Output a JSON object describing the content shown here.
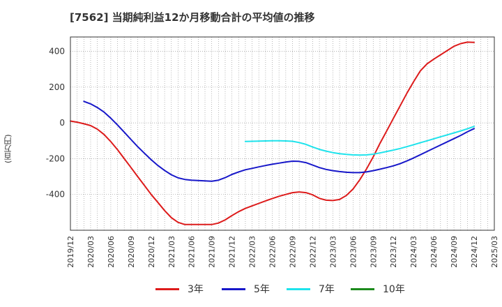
{
  "chart_data": {
    "type": "line",
    "title": "[7562]  当期純利益12か月移動合計の平均値の推移",
    "ylabel": "(百万円)",
    "ylim": [
      -600,
      480
    ],
    "xlim": [
      "2019-12",
      "2025-03"
    ],
    "yticks": [
      400,
      200,
      0,
      -200,
      -400
    ],
    "xticks": [
      "2019/12",
      "2020/03",
      "2020/06",
      "2020/09",
      "2020/12",
      "2021/03",
      "2021/06",
      "2021/09",
      "2021/12",
      "2022/03",
      "2022/06",
      "2022/09",
      "2022/12",
      "2023/03",
      "2023/06",
      "2023/09",
      "2023/12",
      "2024/03",
      "2024/06",
      "2024/09",
      "2024/12",
      "2025/03"
    ],
    "grid": true,
    "legend_position": "bottom",
    "series": [
      {
        "name": "3年",
        "color": "#dd1b1b",
        "points": [
          [
            "2019-12",
            10
          ],
          [
            "2020-01",
            4
          ],
          [
            "2020-02",
            -5
          ],
          [
            "2020-03",
            -15
          ],
          [
            "2020-04",
            -35
          ],
          [
            "2020-05",
            -65
          ],
          [
            "2020-06",
            -105
          ],
          [
            "2020-07",
            -150
          ],
          [
            "2020-08",
            -200
          ],
          [
            "2020-09",
            -250
          ],
          [
            "2020-10",
            -300
          ],
          [
            "2020-11",
            -350
          ],
          [
            "2020-12",
            -400
          ],
          [
            "2021-01",
            -445
          ],
          [
            "2021-02",
            -490
          ],
          [
            "2021-03",
            -530
          ],
          [
            "2021-04",
            -556
          ],
          [
            "2021-05",
            -568
          ],
          [
            "2021-06",
            -568
          ],
          [
            "2021-07",
            -568
          ],
          [
            "2021-08",
            -568
          ],
          [
            "2021-09",
            -568
          ],
          [
            "2021-10",
            -560
          ],
          [
            "2021-11",
            -542
          ],
          [
            "2021-12",
            -518
          ],
          [
            "2022-01",
            -496
          ],
          [
            "2022-02",
            -478
          ],
          [
            "2022-03",
            -464
          ],
          [
            "2022-04",
            -450
          ],
          [
            "2022-05",
            -436
          ],
          [
            "2022-06",
            -423
          ],
          [
            "2022-07",
            -410
          ],
          [
            "2022-08",
            -400
          ],
          [
            "2022-09",
            -390
          ],
          [
            "2022-10",
            -386
          ],
          [
            "2022-11",
            -390
          ],
          [
            "2022-12",
            -402
          ],
          [
            "2023-01",
            -422
          ],
          [
            "2023-02",
            -432
          ],
          [
            "2023-03",
            -434
          ],
          [
            "2023-04",
            -428
          ],
          [
            "2023-05",
            -406
          ],
          [
            "2023-06",
            -370
          ],
          [
            "2023-07",
            -318
          ],
          [
            "2023-08",
            -258
          ],
          [
            "2023-09",
            -190
          ],
          [
            "2023-10",
            -115
          ],
          [
            "2023-11",
            -45
          ],
          [
            "2023-12",
            25
          ],
          [
            "2024-01",
            95
          ],
          [
            "2024-02",
            165
          ],
          [
            "2024-03",
            230
          ],
          [
            "2024-04",
            290
          ],
          [
            "2024-05",
            330
          ],
          [
            "2024-06",
            356
          ],
          [
            "2024-07",
            380
          ],
          [
            "2024-08",
            404
          ],
          [
            "2024-09",
            428
          ],
          [
            "2024-10",
            443
          ],
          [
            "2024-11",
            451
          ],
          [
            "2024-12",
            450
          ]
        ]
      },
      {
        "name": "5年",
        "color": "#1717c9",
        "points": [
          [
            "2020-02",
            120
          ],
          [
            "2020-03",
            106
          ],
          [
            "2020-04",
            86
          ],
          [
            "2020-05",
            60
          ],
          [
            "2020-06",
            26
          ],
          [
            "2020-07",
            -12
          ],
          [
            "2020-08",
            -52
          ],
          [
            "2020-09",
            -93
          ],
          [
            "2020-10",
            -133
          ],
          [
            "2020-11",
            -170
          ],
          [
            "2020-12",
            -206
          ],
          [
            "2021-01",
            -238
          ],
          [
            "2021-02",
            -266
          ],
          [
            "2021-03",
            -290
          ],
          [
            "2021-04",
            -307
          ],
          [
            "2021-05",
            -316
          ],
          [
            "2021-06",
            -320
          ],
          [
            "2021-07",
            -322
          ],
          [
            "2021-08",
            -324
          ],
          [
            "2021-09",
            -326
          ],
          [
            "2021-10",
            -320
          ],
          [
            "2021-11",
            -306
          ],
          [
            "2021-12",
            -288
          ],
          [
            "2022-01",
            -274
          ],
          [
            "2022-02",
            -262
          ],
          [
            "2022-03",
            -254
          ],
          [
            "2022-04",
            -246
          ],
          [
            "2022-05",
            -238
          ],
          [
            "2022-06",
            -231
          ],
          [
            "2022-07",
            -225
          ],
          [
            "2022-08",
            -219
          ],
          [
            "2022-09",
            -214
          ],
          [
            "2022-10",
            -215
          ],
          [
            "2022-11",
            -222
          ],
          [
            "2022-12",
            -236
          ],
          [
            "2023-01",
            -250
          ],
          [
            "2023-02",
            -260
          ],
          [
            "2023-03",
            -267
          ],
          [
            "2023-04",
            -272
          ],
          [
            "2023-05",
            -276
          ],
          [
            "2023-06",
            -278
          ],
          [
            "2023-07",
            -278
          ],
          [
            "2023-08",
            -274
          ],
          [
            "2023-09",
            -267
          ],
          [
            "2023-10",
            -259
          ],
          [
            "2023-11",
            -250
          ],
          [
            "2023-12",
            -240
          ],
          [
            "2024-01",
            -228
          ],
          [
            "2024-02",
            -213
          ],
          [
            "2024-03",
            -196
          ],
          [
            "2024-04",
            -178
          ],
          [
            "2024-05",
            -160
          ],
          [
            "2024-06",
            -142
          ],
          [
            "2024-07",
            -124
          ],
          [
            "2024-08",
            -106
          ],
          [
            "2024-09",
            -88
          ],
          [
            "2024-10",
            -70
          ],
          [
            "2024-11",
            -50
          ],
          [
            "2024-12",
            -32
          ]
        ]
      },
      {
        "name": "7年",
        "color": "#1ee3ec",
        "points": [
          [
            "2022-02",
            -104
          ],
          [
            "2022-03",
            -103
          ],
          [
            "2022-04",
            -102
          ],
          [
            "2022-05",
            -101
          ],
          [
            "2022-06",
            -100
          ],
          [
            "2022-07",
            -100
          ],
          [
            "2022-08",
            -101
          ],
          [
            "2022-09",
            -103
          ],
          [
            "2022-10",
            -110
          ],
          [
            "2022-11",
            -120
          ],
          [
            "2022-12",
            -135
          ],
          [
            "2023-01",
            -148
          ],
          [
            "2023-02",
            -158
          ],
          [
            "2023-03",
            -166
          ],
          [
            "2023-04",
            -172
          ],
          [
            "2023-05",
            -176
          ],
          [
            "2023-06",
            -179
          ],
          [
            "2023-07",
            -180
          ],
          [
            "2023-08",
            -179
          ],
          [
            "2023-09",
            -175
          ],
          [
            "2023-10",
            -168
          ],
          [
            "2023-11",
            -160
          ],
          [
            "2023-12",
            -152
          ],
          [
            "2024-01",
            -143
          ],
          [
            "2024-02",
            -133
          ],
          [
            "2024-03",
            -122
          ],
          [
            "2024-04",
            -111
          ],
          [
            "2024-05",
            -100
          ],
          [
            "2024-06",
            -89
          ],
          [
            "2024-07",
            -78
          ],
          [
            "2024-08",
            -67
          ],
          [
            "2024-09",
            -56
          ],
          [
            "2024-10",
            -45
          ],
          [
            "2024-11",
            -33
          ],
          [
            "2024-12",
            -20
          ]
        ]
      },
      {
        "name": "10年",
        "color": "#1c8a1c",
        "points": []
      }
    ]
  }
}
